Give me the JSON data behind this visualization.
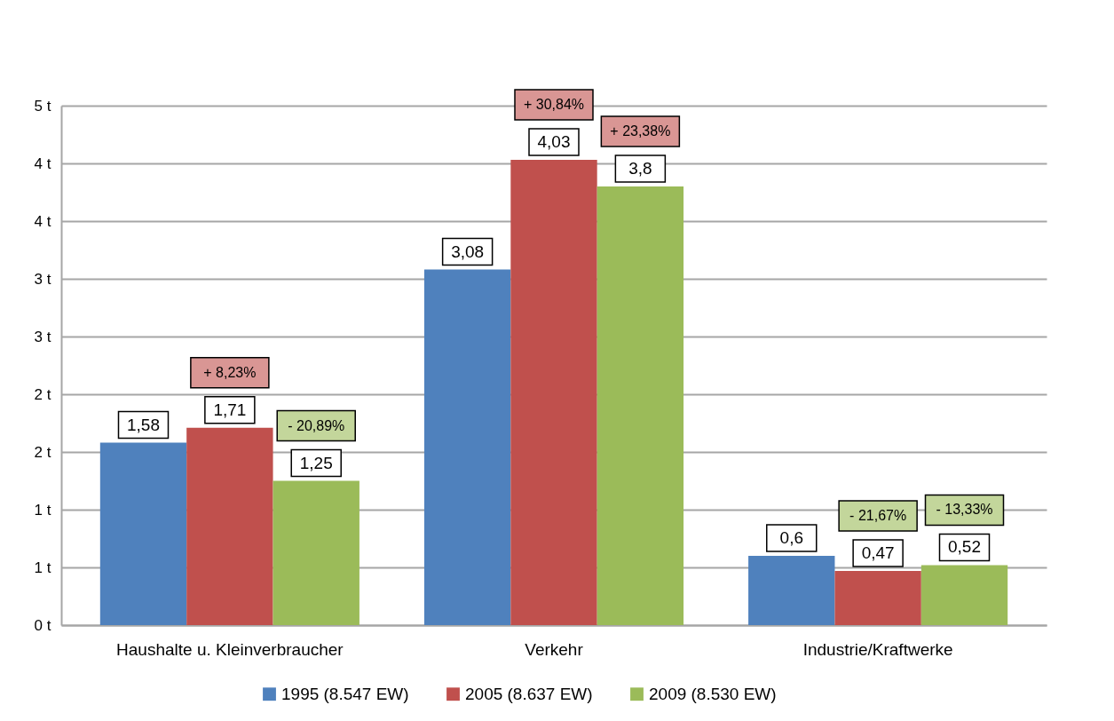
{
  "chart_data": {
    "type": "bar",
    "categories": [
      "Haushalte u. Kleinverbraucher",
      "Verkehr",
      "Industrie/Kraftwerke"
    ],
    "series": [
      {
        "name": "1995 (8.547 EW)",
        "color": "#4f81bd",
        "values": [
          1.58,
          3.08,
          0.6
        ],
        "value_labels": [
          "1,58",
          "3,08",
          "0,6"
        ]
      },
      {
        "name": "2005 (8.637 EW)",
        "color": "#c0504d",
        "values": [
          1.71,
          4.03,
          0.47
        ],
        "value_labels": [
          "1,71",
          "4,03",
          "0,47"
        ]
      },
      {
        "name": "2009 (8.530 EW)",
        "color": "#9bbb59",
        "values": [
          1.25,
          3.8,
          0.52
        ],
        "value_labels": [
          "1,25",
          "3,8",
          "0,52"
        ]
      }
    ],
    "ylim": [
      0,
      4.5
    ],
    "yticks": [
      {
        "value": 0,
        "label": "0 t"
      },
      {
        "value": 0.5,
        "label": "1 t"
      },
      {
        "value": 1,
        "label": "1 t"
      },
      {
        "value": 1.5,
        "label": "2 t"
      },
      {
        "value": 2,
        "label": "2 t"
      },
      {
        "value": 2.5,
        "label": "3 t"
      },
      {
        "value": 3,
        "label": "3 t"
      },
      {
        "value": 3.5,
        "label": "4 t"
      },
      {
        "value": 4,
        "label": "4 t"
      },
      {
        "value": 4.5,
        "label": "5 t"
      }
    ],
    "grid": "y",
    "legend": "bottom",
    "annotations": [
      "+ 8,23%",
      "- 20,89%",
      "+ 30,84%",
      "+ 23,38%",
      "- 21,67%",
      "- 13,33%"
    ]
  }
}
